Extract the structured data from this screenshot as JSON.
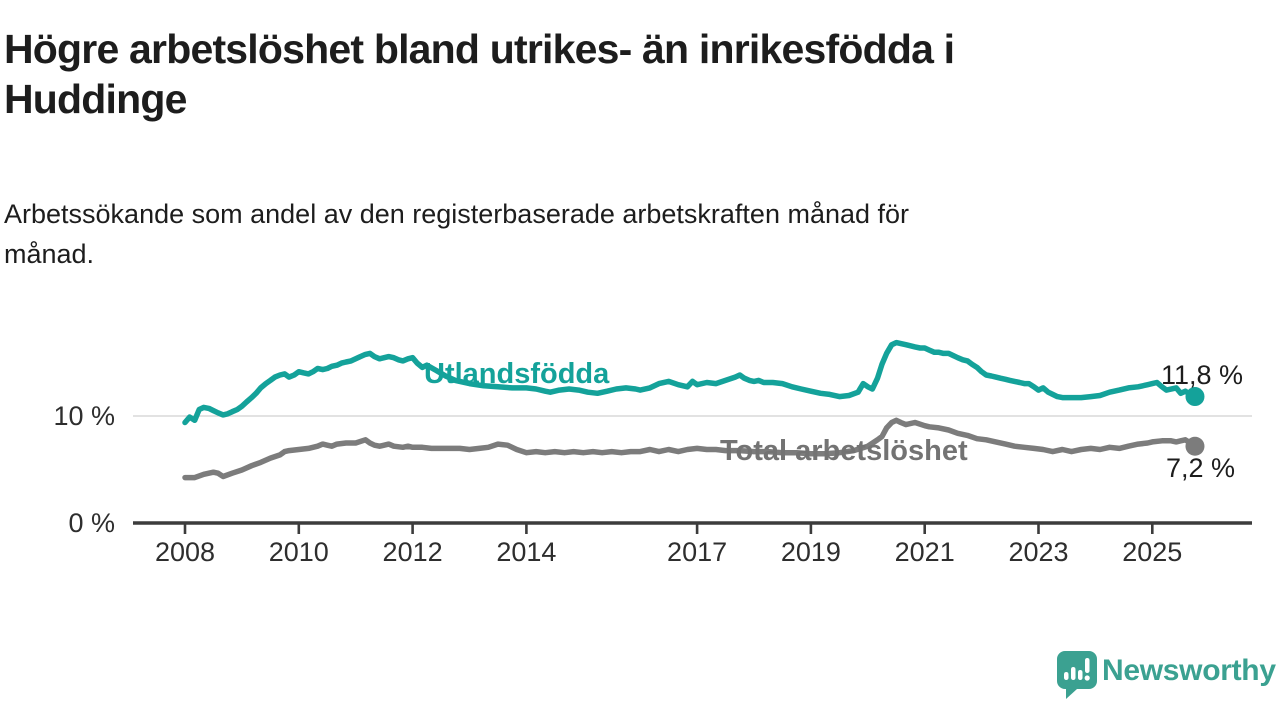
{
  "header": {
    "title_lines": [
      "Högre arbetslöshet bland utrikes- än inrikesfödda i",
      "Huddinge"
    ],
    "subtitle_lines": [
      "Arbetssökande som andel av den registerbaserade arbetskraften månad för",
      "månad."
    ]
  },
  "branding": {
    "logo_text": "Newsworthy",
    "logo_color": "#3ba191"
  },
  "chart_data": {
    "type": "line",
    "title": "Högre arbetslöshet bland utrikes- än inrikesfödda i Huddinge",
    "subtitle": "Arbetssökande som andel av den registerbaserade arbetskraften månad för månad.",
    "unit": "%",
    "grid": "horizontal-10-only",
    "legend_position": "inline-on-lines",
    "x_axis": {
      "ticks": [
        2008,
        2010,
        2012,
        2014,
        2017,
        2019,
        2021,
        2023,
        2025
      ],
      "range": [
        2007.1,
        2026.8
      ]
    },
    "y_axis": {
      "ticks": [
        {
          "value": 0,
          "label": "0 %"
        },
        {
          "value": 10,
          "label": "10 %"
        }
      ],
      "range": [
        0,
        18.5
      ]
    },
    "colors": {
      "axis": "#3c3c3c",
      "gridline": "#d9d9d9",
      "tick_text": "#2e2e2e"
    },
    "series": [
      {
        "name": "Utlandsfödda",
        "color": "#14a29a",
        "end_label": "11,8 %",
        "end_value": 11.8,
        "points": [
          [
            2008.0,
            9.4
          ],
          [
            2008.08,
            9.9
          ],
          [
            2008.17,
            9.6
          ],
          [
            2008.25,
            10.6
          ],
          [
            2008.33,
            10.8
          ],
          [
            2008.42,
            10.7
          ],
          [
            2008.5,
            10.5
          ],
          [
            2008.58,
            10.3
          ],
          [
            2008.67,
            10.1
          ],
          [
            2008.75,
            10.2
          ],
          [
            2008.83,
            10.4
          ],
          [
            2008.92,
            10.6
          ],
          [
            2009.0,
            10.9
          ],
          [
            2009.08,
            11.3
          ],
          [
            2009.17,
            11.7
          ],
          [
            2009.25,
            12.1
          ],
          [
            2009.33,
            12.6
          ],
          [
            2009.42,
            13.0
          ],
          [
            2009.5,
            13.3
          ],
          [
            2009.58,
            13.6
          ],
          [
            2009.67,
            13.8
          ],
          [
            2009.75,
            13.9
          ],
          [
            2009.83,
            13.6
          ],
          [
            2009.92,
            13.8
          ],
          [
            2010.0,
            14.1
          ],
          [
            2010.08,
            14.0
          ],
          [
            2010.17,
            13.9
          ],
          [
            2010.25,
            14.1
          ],
          [
            2010.33,
            14.4
          ],
          [
            2010.42,
            14.3
          ],
          [
            2010.5,
            14.4
          ],
          [
            2010.58,
            14.6
          ],
          [
            2010.67,
            14.7
          ],
          [
            2010.75,
            14.9
          ],
          [
            2010.83,
            15.0
          ],
          [
            2010.92,
            15.1
          ],
          [
            2011.0,
            15.3
          ],
          [
            2011.08,
            15.5
          ],
          [
            2011.17,
            15.7
          ],
          [
            2011.25,
            15.8
          ],
          [
            2011.33,
            15.5
          ],
          [
            2011.42,
            15.3
          ],
          [
            2011.5,
            15.4
          ],
          [
            2011.58,
            15.5
          ],
          [
            2011.67,
            15.4
          ],
          [
            2011.75,
            15.2
          ],
          [
            2011.83,
            15.1
          ],
          [
            2011.92,
            15.3
          ],
          [
            2012.0,
            15.4
          ],
          [
            2012.08,
            14.9
          ],
          [
            2012.17,
            14.5
          ],
          [
            2012.25,
            14.7
          ],
          [
            2012.42,
            14.2
          ],
          [
            2012.58,
            13.7
          ],
          [
            2012.75,
            13.3
          ],
          [
            2013.0,
            13.0
          ],
          [
            2013.25,
            12.8
          ],
          [
            2013.5,
            12.7
          ],
          [
            2013.75,
            12.6
          ],
          [
            2014.0,
            12.6
          ],
          [
            2014.17,
            12.5
          ],
          [
            2014.33,
            12.3
          ],
          [
            2014.42,
            12.2
          ],
          [
            2014.58,
            12.4
          ],
          [
            2014.75,
            12.5
          ],
          [
            2014.92,
            12.4
          ],
          [
            2015.08,
            12.2
          ],
          [
            2015.25,
            12.1
          ],
          [
            2015.42,
            12.3
          ],
          [
            2015.58,
            12.5
          ],
          [
            2015.75,
            12.6
          ],
          [
            2015.92,
            12.5
          ],
          [
            2016.0,
            12.4
          ],
          [
            2016.17,
            12.6
          ],
          [
            2016.33,
            13.0
          ],
          [
            2016.5,
            13.2
          ],
          [
            2016.67,
            12.9
          ],
          [
            2016.83,
            12.7
          ],
          [
            2016.92,
            13.2
          ],
          [
            2017.0,
            12.9
          ],
          [
            2017.17,
            13.1
          ],
          [
            2017.33,
            13.0
          ],
          [
            2017.5,
            13.3
          ],
          [
            2017.67,
            13.6
          ],
          [
            2017.75,
            13.8
          ],
          [
            2017.83,
            13.5
          ],
          [
            2017.92,
            13.3
          ],
          [
            2018.0,
            13.2
          ],
          [
            2018.08,
            13.3
          ],
          [
            2018.17,
            13.1
          ],
          [
            2018.33,
            13.1
          ],
          [
            2018.5,
            13.0
          ],
          [
            2018.67,
            12.7
          ],
          [
            2018.83,
            12.5
          ],
          [
            2019.0,
            12.3
          ],
          [
            2019.17,
            12.1
          ],
          [
            2019.33,
            12.0
          ],
          [
            2019.5,
            11.8
          ],
          [
            2019.67,
            11.9
          ],
          [
            2019.83,
            12.2
          ],
          [
            2019.92,
            13.0
          ],
          [
            2020.0,
            12.7
          ],
          [
            2020.08,
            12.5
          ],
          [
            2020.17,
            13.5
          ],
          [
            2020.25,
            14.8
          ],
          [
            2020.33,
            15.8
          ],
          [
            2020.42,
            16.6
          ],
          [
            2020.5,
            16.8
          ],
          [
            2020.58,
            16.7
          ],
          [
            2020.67,
            16.6
          ],
          [
            2020.75,
            16.5
          ],
          [
            2020.83,
            16.4
          ],
          [
            2020.92,
            16.3
          ],
          [
            2021.0,
            16.3
          ],
          [
            2021.08,
            16.1
          ],
          [
            2021.17,
            15.9
          ],
          [
            2021.25,
            15.9
          ],
          [
            2021.33,
            15.8
          ],
          [
            2021.42,
            15.8
          ],
          [
            2021.5,
            15.6
          ],
          [
            2021.58,
            15.4
          ],
          [
            2021.67,
            15.2
          ],
          [
            2021.75,
            15.1
          ],
          [
            2021.83,
            14.8
          ],
          [
            2021.92,
            14.5
          ],
          [
            2022.0,
            14.1
          ],
          [
            2022.08,
            13.8
          ],
          [
            2022.17,
            13.7
          ],
          [
            2022.25,
            13.6
          ],
          [
            2022.33,
            13.5
          ],
          [
            2022.42,
            13.4
          ],
          [
            2022.5,
            13.3
          ],
          [
            2022.58,
            13.2
          ],
          [
            2022.67,
            13.1
          ],
          [
            2022.75,
            13.0
          ],
          [
            2022.83,
            13.0
          ],
          [
            2022.92,
            12.7
          ],
          [
            2023.0,
            12.4
          ],
          [
            2023.08,
            12.6
          ],
          [
            2023.17,
            12.2
          ],
          [
            2023.25,
            12.0
          ],
          [
            2023.33,
            11.8
          ],
          [
            2023.42,
            11.7
          ],
          [
            2023.58,
            11.7
          ],
          [
            2023.75,
            11.7
          ],
          [
            2023.92,
            11.8
          ],
          [
            2024.08,
            11.9
          ],
          [
            2024.25,
            12.2
          ],
          [
            2024.42,
            12.4
          ],
          [
            2024.58,
            12.6
          ],
          [
            2024.75,
            12.7
          ],
          [
            2024.92,
            12.9
          ],
          [
            2025.0,
            13.0
          ],
          [
            2025.08,
            13.1
          ],
          [
            2025.17,
            12.7
          ],
          [
            2025.25,
            12.4
          ],
          [
            2025.42,
            12.6
          ],
          [
            2025.5,
            12.1
          ],
          [
            2025.58,
            12.3
          ],
          [
            2025.67,
            12.0
          ],
          [
            2025.75,
            11.8
          ]
        ]
      },
      {
        "name": "Total arbetslöshet",
        "color": "#7c7c7c",
        "end_label": "7,2 %",
        "end_value": 7.2,
        "points": [
          [
            2008.0,
            4.3
          ],
          [
            2008.17,
            4.3
          ],
          [
            2008.33,
            4.6
          ],
          [
            2008.5,
            4.8
          ],
          [
            2008.58,
            4.7
          ],
          [
            2008.67,
            4.4
          ],
          [
            2008.83,
            4.7
          ],
          [
            2009.0,
            5.0
          ],
          [
            2009.17,
            5.4
          ],
          [
            2009.33,
            5.7
          ],
          [
            2009.5,
            6.1
          ],
          [
            2009.67,
            6.4
          ],
          [
            2009.75,
            6.7
          ],
          [
            2009.83,
            6.8
          ],
          [
            2010.0,
            6.9
          ],
          [
            2010.17,
            7.0
          ],
          [
            2010.33,
            7.2
          ],
          [
            2010.42,
            7.4
          ],
          [
            2010.5,
            7.3
          ],
          [
            2010.58,
            7.2
          ],
          [
            2010.67,
            7.4
          ],
          [
            2010.83,
            7.5
          ],
          [
            2011.0,
            7.5
          ],
          [
            2011.17,
            7.8
          ],
          [
            2011.25,
            7.5
          ],
          [
            2011.33,
            7.3
          ],
          [
            2011.42,
            7.2
          ],
          [
            2011.5,
            7.3
          ],
          [
            2011.58,
            7.4
          ],
          [
            2011.67,
            7.2
          ],
          [
            2011.83,
            7.1
          ],
          [
            2011.92,
            7.2
          ],
          [
            2012.0,
            7.1
          ],
          [
            2012.17,
            7.1
          ],
          [
            2012.33,
            7.0
          ],
          [
            2012.5,
            7.0
          ],
          [
            2012.67,
            7.0
          ],
          [
            2012.83,
            7.0
          ],
          [
            2013.0,
            6.9
          ],
          [
            2013.17,
            7.0
          ],
          [
            2013.33,
            7.1
          ],
          [
            2013.5,
            7.4
          ],
          [
            2013.67,
            7.3
          ],
          [
            2013.83,
            6.9
          ],
          [
            2014.0,
            6.6
          ],
          [
            2014.17,
            6.7
          ],
          [
            2014.33,
            6.6
          ],
          [
            2014.5,
            6.7
          ],
          [
            2014.67,
            6.6
          ],
          [
            2014.83,
            6.7
          ],
          [
            2015.0,
            6.6
          ],
          [
            2015.17,
            6.7
          ],
          [
            2015.33,
            6.6
          ],
          [
            2015.5,
            6.7
          ],
          [
            2015.67,
            6.6
          ],
          [
            2015.83,
            6.7
          ],
          [
            2016.0,
            6.7
          ],
          [
            2016.17,
            6.9
          ],
          [
            2016.33,
            6.7
          ],
          [
            2016.5,
            6.9
          ],
          [
            2016.67,
            6.7
          ],
          [
            2016.83,
            6.9
          ],
          [
            2017.0,
            7.0
          ],
          [
            2017.17,
            6.9
          ],
          [
            2017.33,
            6.9
          ],
          [
            2017.5,
            6.8
          ],
          [
            2017.75,
            6.8
          ],
          [
            2018.0,
            6.7
          ],
          [
            2018.25,
            6.7
          ],
          [
            2018.5,
            6.6
          ],
          [
            2018.75,
            6.6
          ],
          [
            2019.0,
            6.5
          ],
          [
            2019.25,
            6.5
          ],
          [
            2019.5,
            6.6
          ],
          [
            2019.75,
            6.8
          ],
          [
            2020.0,
            7.2
          ],
          [
            2020.17,
            7.8
          ],
          [
            2020.25,
            8.1
          ],
          [
            2020.33,
            8.9
          ],
          [
            2020.42,
            9.4
          ],
          [
            2020.5,
            9.6
          ],
          [
            2020.58,
            9.4
          ],
          [
            2020.67,
            9.2
          ],
          [
            2020.83,
            9.4
          ],
          [
            2021.0,
            9.1
          ],
          [
            2021.08,
            9.0
          ],
          [
            2021.25,
            8.9
          ],
          [
            2021.42,
            8.7
          ],
          [
            2021.58,
            8.4
          ],
          [
            2021.75,
            8.2
          ],
          [
            2021.92,
            7.9
          ],
          [
            2022.08,
            7.8
          ],
          [
            2022.25,
            7.6
          ],
          [
            2022.42,
            7.4
          ],
          [
            2022.58,
            7.2
          ],
          [
            2022.75,
            7.1
          ],
          [
            2022.92,
            7.0
          ],
          [
            2023.08,
            6.9
          ],
          [
            2023.25,
            6.7
          ],
          [
            2023.42,
            6.9
          ],
          [
            2023.58,
            6.7
          ],
          [
            2023.75,
            6.9
          ],
          [
            2023.92,
            7.0
          ],
          [
            2024.08,
            6.9
          ],
          [
            2024.25,
            7.1
          ],
          [
            2024.42,
            7.0
          ],
          [
            2024.58,
            7.2
          ],
          [
            2024.75,
            7.4
          ],
          [
            2024.92,
            7.5
          ],
          [
            2025.0,
            7.6
          ],
          [
            2025.17,
            7.7
          ],
          [
            2025.33,
            7.7
          ],
          [
            2025.42,
            7.6
          ],
          [
            2025.5,
            7.7
          ],
          [
            2025.58,
            7.8
          ],
          [
            2025.67,
            7.5
          ],
          [
            2025.75,
            7.2
          ]
        ]
      }
    ]
  }
}
